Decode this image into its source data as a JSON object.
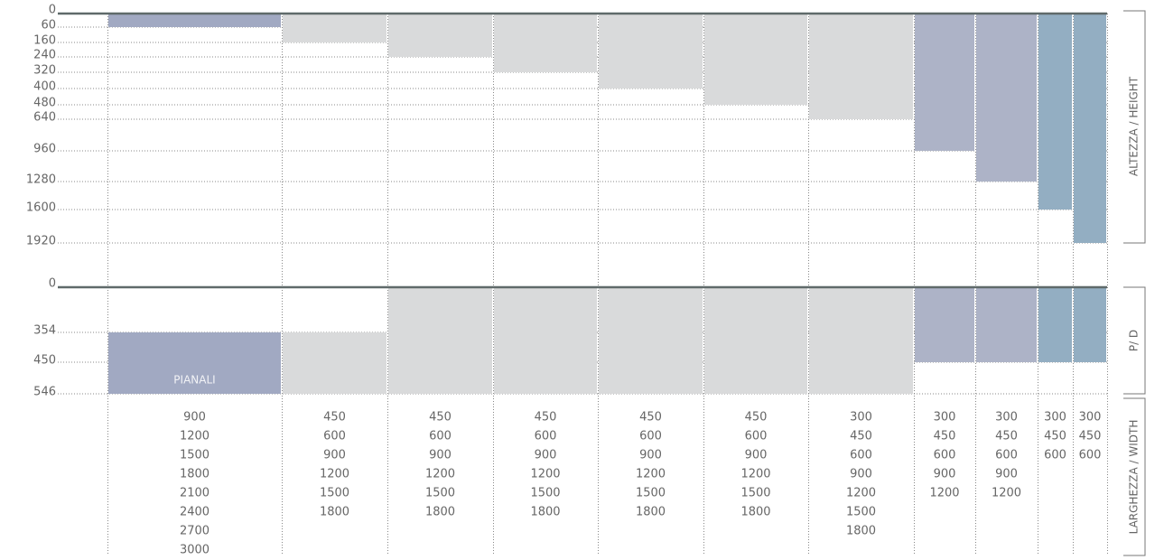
{
  "height_axis": {
    "label": "ALTEZZA / HEIGHT",
    "ticks": [
      0,
      60,
      160,
      240,
      320,
      400,
      480,
      640,
      960,
      1280,
      1600,
      1920
    ]
  },
  "depth_axis": {
    "label": "P/ D",
    "ticks": [
      0,
      354,
      450,
      546
    ]
  },
  "width_axis": {
    "label": "LARGHEZZA / WIDTH"
  },
  "columns": [
    {
      "label": "PIANALI",
      "height": 60,
      "depth": [
        354,
        546
      ],
      "color": "#a1a9c2",
      "widths": [
        900,
        1200,
        1500,
        1800,
        2100,
        2400,
        2700,
        3000
      ]
    },
    {
      "height": 160,
      "depth": [
        354,
        546
      ],
      "color": "#d9dadb",
      "widths": [
        450,
        600,
        900,
        1200,
        1500,
        1800
      ]
    },
    {
      "height": 240,
      "depth": [
        0,
        546
      ],
      "color": "#d9dadb",
      "widths": [
        450,
        600,
        900,
        1200,
        1500,
        1800
      ]
    },
    {
      "height": 320,
      "depth": [
        0,
        546
      ],
      "color": "#d9dadb",
      "widths": [
        450,
        600,
        900,
        1200,
        1500,
        1800
      ]
    },
    {
      "height": 400,
      "depth": [
        0,
        546
      ],
      "color": "#d9dadb",
      "widths": [
        450,
        600,
        900,
        1200,
        1500,
        1800
      ]
    },
    {
      "height": 480,
      "depth": [
        0,
        546
      ],
      "color": "#d9dadb",
      "widths": [
        450,
        600,
        900,
        1200,
        1500,
        1800
      ]
    },
    {
      "height": 640,
      "depth": [
        0,
        546
      ],
      "color": "#d9dadb",
      "widths": [
        300,
        450,
        600,
        900,
        1200,
        1500,
        1800
      ]
    },
    {
      "height": 960,
      "depth": [
        0,
        450
      ],
      "color": "#adb3c7",
      "widths": [
        300,
        450,
        600,
        900,
        1200
      ]
    },
    {
      "height": 1280,
      "depth": [
        0,
        450
      ],
      "color": "#adb3c7",
      "widths": [
        300,
        450,
        600,
        900,
        1200
      ]
    },
    {
      "height": 1600,
      "depth": [
        0,
        450
      ],
      "color": "#93aec2",
      "widths": [
        300,
        450,
        600
      ]
    },
    {
      "height": 1920,
      "depth": [
        0,
        450
      ],
      "color": "#93aec2",
      "widths": [
        300,
        450,
        600
      ]
    }
  ]
}
